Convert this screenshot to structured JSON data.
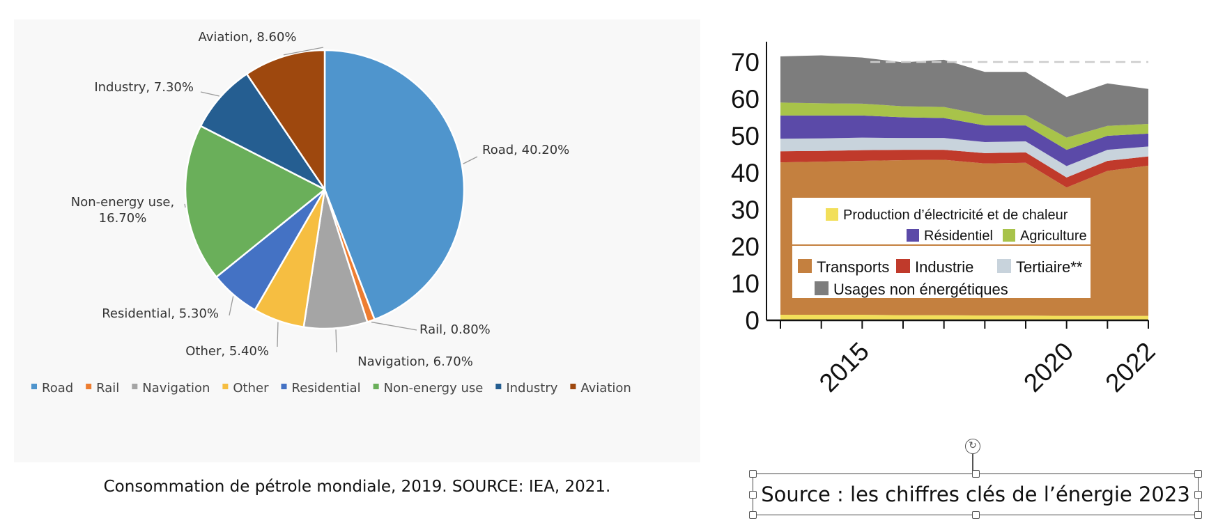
{
  "chart_data": [
    {
      "type": "pie",
      "categories": [
        "Road",
        "Rail",
        "Navigation",
        "Other",
        "Residential",
        "Non-energy use",
        "Industry",
        "Aviation"
      ],
      "values": [
        40.2,
        0.8,
        6.7,
        5.4,
        5.3,
        16.7,
        7.3,
        8.6
      ],
      "labels": [
        "Road, 40.20%",
        "Rail, 0.80%",
        "Navigation, 6.70%",
        "Other, 5.40%",
        "Residential, 5.30%",
        [
          "Non-energy use,",
          "16.70%"
        ],
        "Industry, 7.30%",
        "Aviation, 8.60%"
      ],
      "colors": [
        "#4f95cd",
        "#ed7d31",
        "#a5a5a5",
        "#f6be41",
        "#4472c4",
        "#6aaf5a",
        "#255e91",
        "#9e480e"
      ],
      "legend": "bottom",
      "caption": "Consommation de pétrole mondiale, 2019. SOURCE: IEA, 2021."
    },
    {
      "type": "area",
      "stacked": true,
      "x": [
        2013,
        2014,
        2015,
        2016,
        2017,
        2018,
        2019,
        2020,
        2021,
        2022
      ],
      "x_ticks": [
        "2015",
        "2020",
        "2022"
      ],
      "ylim": [
        0,
        75
      ],
      "y_ticks": [
        "0",
        "10",
        "20",
        "30",
        "40",
        "50",
        "60",
        "70"
      ],
      "reference_line": 70,
      "series": [
        {
          "name": "Production d’électricité et de chaleur",
          "color": "#f2df5a",
          "values": [
            1.5,
            1.5,
            1.5,
            1.4,
            1.4,
            1.3,
            1.3,
            1.2,
            1.2,
            1.2
          ]
        },
        {
          "name": "Transports",
          "color": "#c4803f",
          "values": [
            41.3,
            41.5,
            41.7,
            42.0,
            42.1,
            41.2,
            41.4,
            34.8,
            39.3,
            40.7
          ]
        },
        {
          "name": "Industrie",
          "color": "#c03a2b",
          "values": [
            3.0,
            2.9,
            2.9,
            2.8,
            2.7,
            2.8,
            2.8,
            2.7,
            2.7,
            2.5
          ]
        },
        {
          "name": "Tertiaire**",
          "color": "#c8d3dc",
          "values": [
            3.4,
            3.4,
            3.4,
            3.2,
            3.2,
            3.0,
            3.0,
            3.1,
            3.0,
            2.7
          ]
        },
        {
          "name": "Résidentiel",
          "color": "#5b4aa8",
          "values": [
            6.3,
            6.2,
            6.0,
            5.6,
            5.4,
            4.5,
            4.3,
            4.4,
            3.8,
            3.5
          ]
        },
        {
          "name": "Agriculture",
          "color": "#a8c34a",
          "values": [
            3.5,
            3.3,
            3.2,
            3.0,
            3.0,
            2.8,
            2.8,
            3.3,
            2.7,
            2.6
          ]
        },
        {
          "name": "Usages non énergétiques",
          "color": "#7d7d7d",
          "values": [
            12.5,
            13.0,
            12.5,
            11.9,
            12.8,
            11.7,
            11.7,
            11.0,
            11.5,
            9.5
          ]
        }
      ],
      "legend_rows": [
        [
          "Production d’électricité et de chaleur"
        ],
        [
          "Résidentiel",
          "Agriculture"
        ],
        [
          "Transports",
          "Industrie",
          "Tertiaire**"
        ],
        [
          "Usages non énergétiques"
        ]
      ],
      "source": "Source : les chiffres clés de l’énergie 2023"
    }
  ]
}
